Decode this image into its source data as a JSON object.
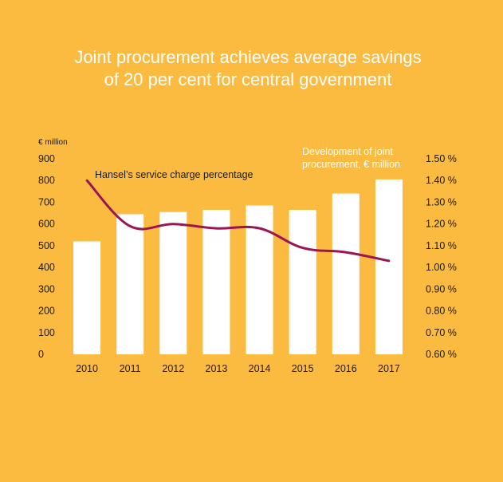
{
  "colors": {
    "background": "#FBBB40",
    "bars": "#FFFFFF",
    "line": "#9B1453",
    "title": "#FFFFFF",
    "text": "#1A1A1A"
  },
  "chart_data": {
    "type": "bar",
    "title": [
      "Joint procurement achieves average savings",
      "of 20 per cent for central government"
    ],
    "categories": [
      "2010",
      "2011",
      "2012",
      "2013",
      "2014",
      "2015",
      "2016",
      "2017"
    ],
    "series": [
      {
        "name": "Development of joint procurement, € million",
        "name_lines": [
          "Development of joint",
          "procurement, € million"
        ],
        "type": "bar",
        "axis": "left",
        "values": [
          520,
          645,
          655,
          665,
          685,
          665,
          740,
          805
        ]
      },
      {
        "name": "Hansel’s service charge percentage",
        "type": "line",
        "axis": "right",
        "values": [
          1.4,
          1.19,
          1.2,
          1.18,
          1.18,
          1.09,
          1.07,
          1.03
        ]
      }
    ],
    "y_left": {
      "unit": "€ million",
      "ylim": [
        0,
        900
      ],
      "ticks": [
        "0",
        "100",
        "200",
        "300",
        "400",
        "500",
        "600",
        "700",
        "800",
        "900"
      ]
    },
    "y_right": {
      "ylim": [
        0.6,
        1.5
      ],
      "ticks": [
        "0.60 %",
        "0.70 %",
        "0.80 %",
        "0.90 %",
        "1.00 %",
        "1.10 %",
        "1.20 %",
        "1.30 %",
        "1.40 %",
        "1.50 %"
      ]
    },
    "grid": false,
    "legend": "inline labels"
  }
}
